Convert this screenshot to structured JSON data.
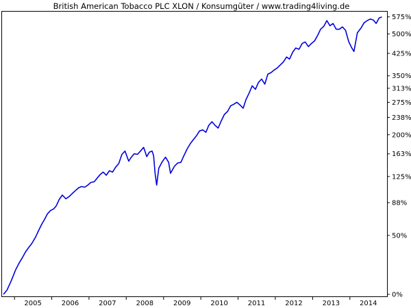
{
  "chart_data": {
    "type": "line",
    "title": "British American Tobacco PLC XLON / Konsumgüter / www.trading4living.de",
    "xlabel": "",
    "ylabel": "",
    "x_ticks": [
      "2005",
      "2006",
      "2007",
      "2008",
      "2009",
      "2010",
      "2011",
      "2012",
      "2013",
      "2014"
    ],
    "y_ticks": [
      "0%",
      "50%",
      "88%",
      "125%",
      "163%",
      "200%",
      "238%",
      "275%",
      "313%",
      "350%",
      "425%",
      "500%",
      "575%"
    ],
    "y_scale": "log",
    "xlim": [
      "2004-09-01",
      "2014-12-31"
    ],
    "ylim": [
      0,
      590
    ],
    "grid": false,
    "legend": "none",
    "colors": {
      "line": "#0000dd",
      "axis": "#000000",
      "background": "#ffffff"
    },
    "series": [
      {
        "points": [
          [
            "2004-09-15",
            0
          ],
          [
            "2004-10-20",
            3
          ],
          [
            "2004-12-01",
            10
          ],
          [
            "2005-01-10",
            18
          ],
          [
            "2005-02-15",
            24
          ],
          [
            "2005-03-15",
            28
          ],
          [
            "2005-04-20",
            34
          ],
          [
            "2005-05-20",
            38
          ],
          [
            "2005-06-20",
            42
          ],
          [
            "2005-07-25",
            48
          ],
          [
            "2005-08-25",
            55
          ],
          [
            "2005-09-25",
            62
          ],
          [
            "2005-10-20",
            67
          ],
          [
            "2005-11-20",
            74
          ],
          [
            "2005-12-20",
            78
          ],
          [
            "2006-01-20",
            80
          ],
          [
            "2006-02-15",
            84
          ],
          [
            "2006-03-15",
            92
          ],
          [
            "2006-04-15",
            98
          ],
          [
            "2006-05-20",
            93
          ],
          [
            "2006-06-20",
            96
          ],
          [
            "2006-07-20",
            100
          ],
          [
            "2006-08-20",
            104
          ],
          [
            "2006-09-20",
            108
          ],
          [
            "2006-10-20",
            110
          ],
          [
            "2006-11-20",
            109
          ],
          [
            "2006-12-20",
            112
          ],
          [
            "2007-01-20",
            116
          ],
          [
            "2007-02-20",
            117
          ],
          [
            "2007-03-20",
            122
          ],
          [
            "2007-04-20",
            128
          ],
          [
            "2007-05-20",
            132
          ],
          [
            "2007-06-20",
            127
          ],
          [
            "2007-07-20",
            134
          ],
          [
            "2007-08-20",
            132
          ],
          [
            "2007-09-20",
            140
          ],
          [
            "2007-10-20",
            146
          ],
          [
            "2007-11-20",
            162
          ],
          [
            "2007-12-20",
            168
          ],
          [
            "2008-01-25",
            150
          ],
          [
            "2008-02-20",
            157
          ],
          [
            "2008-03-20",
            163
          ],
          [
            "2008-04-20",
            162
          ],
          [
            "2008-05-20",
            168
          ],
          [
            "2008-06-20",
            175
          ],
          [
            "2008-07-20",
            158
          ],
          [
            "2008-08-15",
            166
          ],
          [
            "2008-09-10",
            168
          ],
          [
            "2008-09-25",
            160
          ],
          [
            "2008-10-10",
            130
          ],
          [
            "2008-10-25",
            112
          ],
          [
            "2008-11-15",
            138
          ],
          [
            "2008-12-15",
            148
          ],
          [
            "2009-01-20",
            157
          ],
          [
            "2009-02-20",
            148
          ],
          [
            "2009-03-10",
            130
          ],
          [
            "2009-04-20",
            142
          ],
          [
            "2009-05-20",
            147
          ],
          [
            "2009-06-20",
            148
          ],
          [
            "2009-07-20",
            160
          ],
          [
            "2009-08-20",
            172
          ],
          [
            "2009-09-20",
            182
          ],
          [
            "2009-10-20",
            190
          ],
          [
            "2009-11-20",
            198
          ],
          [
            "2009-12-20",
            208
          ],
          [
            "2010-01-20",
            210
          ],
          [
            "2010-02-20",
            205
          ],
          [
            "2010-03-20",
            220
          ],
          [
            "2010-04-20",
            228
          ],
          [
            "2010-05-20",
            220
          ],
          [
            "2010-06-20",
            214
          ],
          [
            "2010-07-20",
            230
          ],
          [
            "2010-08-20",
            245
          ],
          [
            "2010-09-20",
            252
          ],
          [
            "2010-10-20",
            266
          ],
          [
            "2010-11-20",
            270
          ],
          [
            "2010-12-20",
            275
          ],
          [
            "2011-01-20",
            268
          ],
          [
            "2011-02-20",
            260
          ],
          [
            "2011-03-20",
            282
          ],
          [
            "2011-04-20",
            300
          ],
          [
            "2011-05-20",
            320
          ],
          [
            "2011-06-20",
            310
          ],
          [
            "2011-07-20",
            330
          ],
          [
            "2011-08-20",
            340
          ],
          [
            "2011-09-20",
            325
          ],
          [
            "2011-10-20",
            355
          ],
          [
            "2011-11-20",
            360
          ],
          [
            "2011-12-20",
            368
          ],
          [
            "2012-01-20",
            375
          ],
          [
            "2012-02-20",
            385
          ],
          [
            "2012-03-20",
            395
          ],
          [
            "2012-04-20",
            412
          ],
          [
            "2012-05-20",
            405
          ],
          [
            "2012-06-20",
            430
          ],
          [
            "2012-07-20",
            445
          ],
          [
            "2012-08-20",
            440
          ],
          [
            "2012-09-20",
            462
          ],
          [
            "2012-10-20",
            468
          ],
          [
            "2012-11-20",
            450
          ],
          [
            "2012-12-20",
            462
          ],
          [
            "2013-01-20",
            472
          ],
          [
            "2013-02-20",
            495
          ],
          [
            "2013-03-20",
            520
          ],
          [
            "2013-04-20",
            532
          ],
          [
            "2013-05-20",
            558
          ],
          [
            "2013-06-20",
            535
          ],
          [
            "2013-07-20",
            545
          ],
          [
            "2013-08-20",
            520
          ],
          [
            "2013-09-20",
            520
          ],
          [
            "2013-10-20",
            530
          ],
          [
            "2013-11-20",
            515
          ],
          [
            "2013-12-20",
            470
          ],
          [
            "2014-01-20",
            445
          ],
          [
            "2014-02-10",
            432
          ],
          [
            "2014-03-15",
            505
          ],
          [
            "2014-04-20",
            525
          ],
          [
            "2014-05-20",
            548
          ],
          [
            "2014-06-20",
            558
          ],
          [
            "2014-07-20",
            565
          ],
          [
            "2014-08-20",
            560
          ],
          [
            "2014-09-15",
            545
          ],
          [
            "2014-10-15",
            570
          ],
          [
            "2014-11-10",
            575
          ]
        ]
      }
    ]
  }
}
